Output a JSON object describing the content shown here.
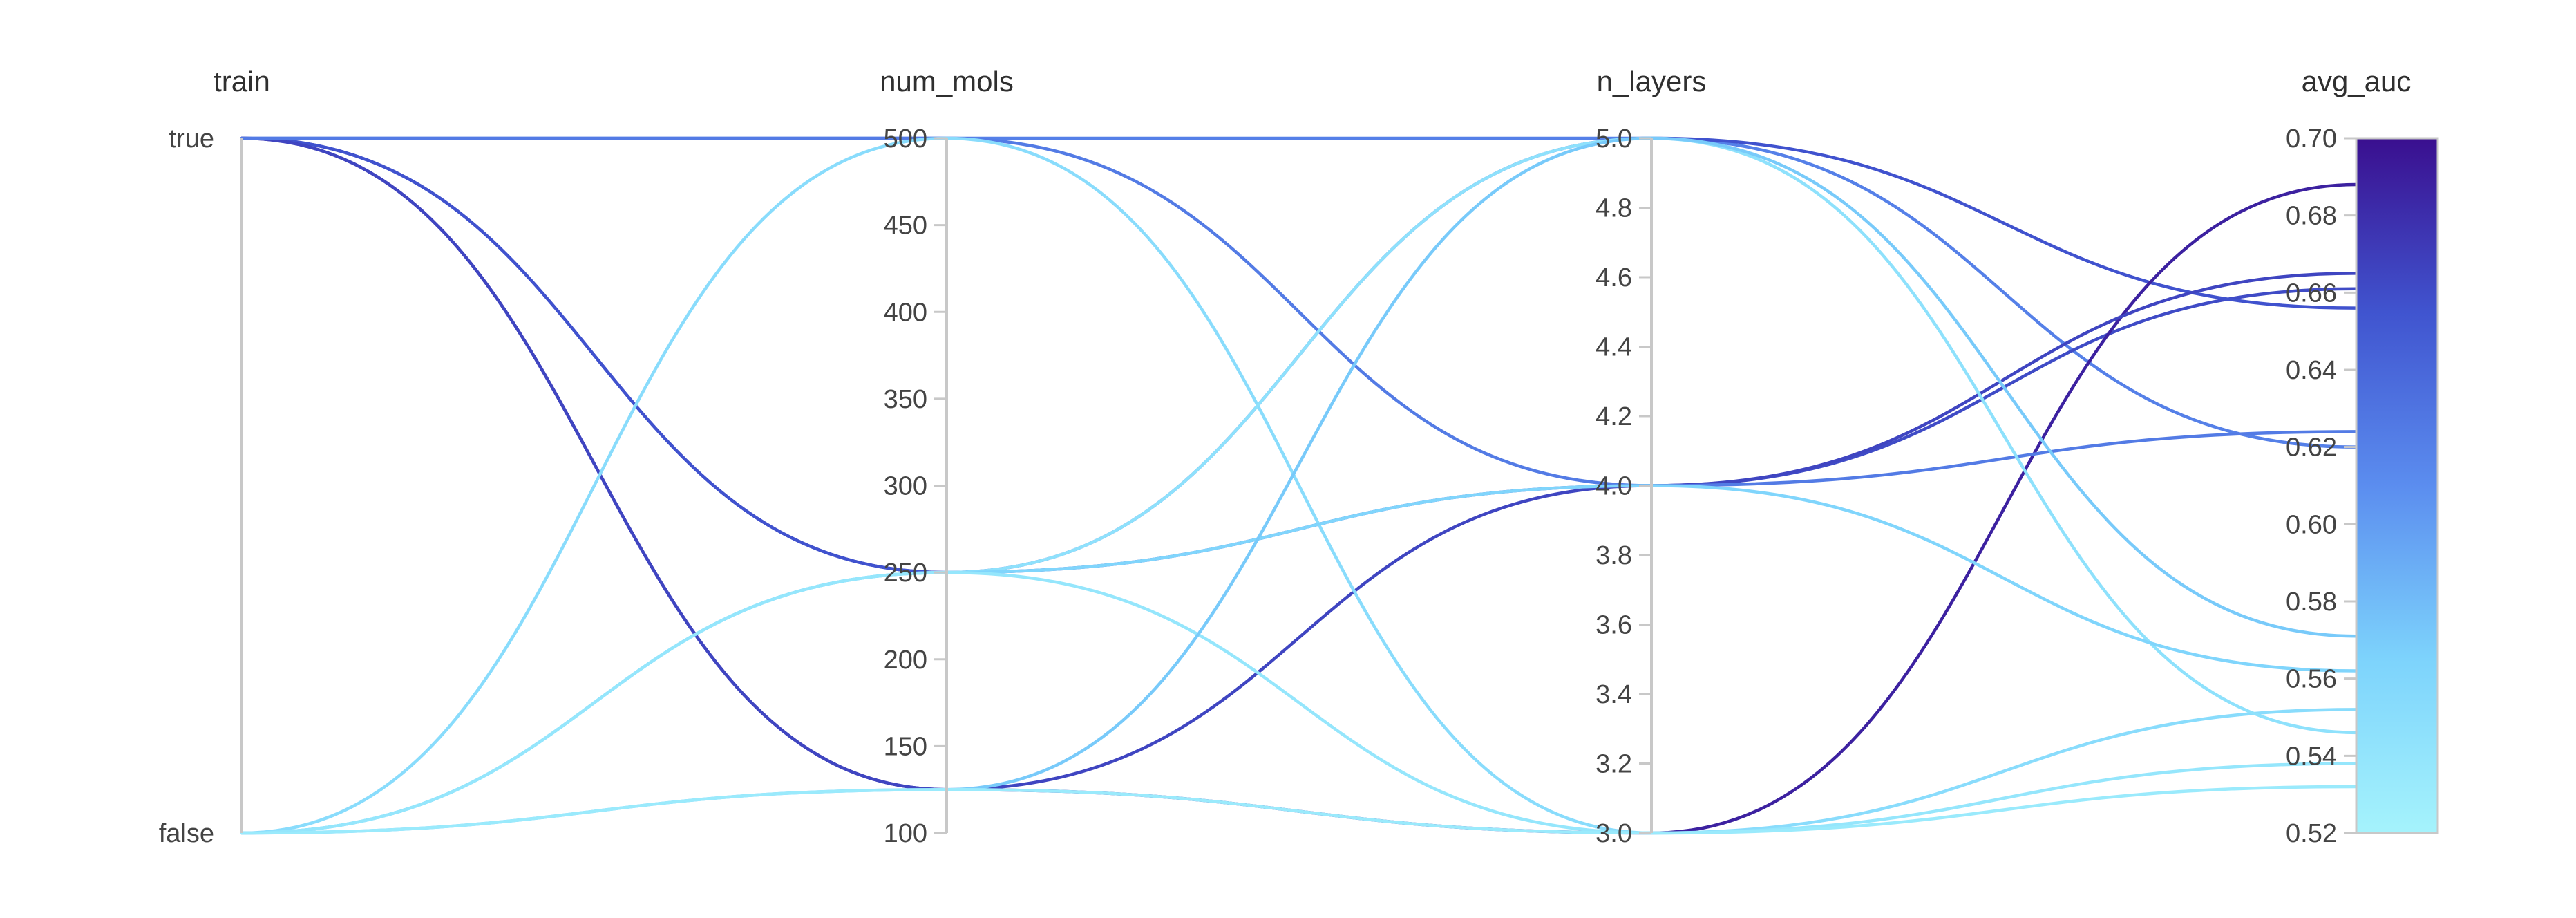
{
  "chart_data": {
    "type": "parallel_coordinates",
    "axes": [
      {
        "name": "train",
        "kind": "categorical",
        "categories": [
          "false",
          "true"
        ],
        "tick_labels": [
          "true",
          "false"
        ]
      },
      {
        "name": "num_mols",
        "kind": "numeric",
        "range": [
          100,
          500
        ],
        "ticks": [
          100,
          150,
          200,
          250,
          300,
          350,
          400,
          450,
          500
        ]
      },
      {
        "name": "n_layers",
        "kind": "numeric",
        "range": [
          3.0,
          5.0
        ],
        "ticks": [
          "3.0",
          "3.2",
          "3.4",
          "3.6",
          "3.8",
          "4.0",
          "4.2",
          "4.4",
          "4.6",
          "4.8",
          "5.0"
        ]
      },
      {
        "name": "avg_auc",
        "kind": "numeric",
        "range": [
          0.52,
          0.7
        ],
        "ticks": [
          "0.52",
          "0.54",
          "0.56",
          "0.58",
          "0.60",
          "0.62",
          "0.64",
          "0.66",
          "0.68",
          "0.70"
        ]
      }
    ],
    "color_scale": {
      "variable": "avg_auc",
      "range": [
        0.52,
        0.7
      ],
      "stops": [
        "#a5f3fc",
        "#7dd3fc",
        "#5b8def",
        "#4054cf",
        "#3a0f8f"
      ]
    },
    "lines": [
      {
        "train": "true",
        "num_mols": 500,
        "n_layers": 5.0,
        "avg_auc": 0.62
      },
      {
        "train": "true",
        "num_mols": 250,
        "n_layers": 4.0,
        "avg_auc": 0.661
      },
      {
        "train": "true",
        "num_mols": 250,
        "n_layers": 5.0,
        "avg_auc": 0.656
      },
      {
        "train": "true",
        "num_mols": 125,
        "n_layers": 3.0,
        "avg_auc": 0.688
      },
      {
        "train": "true",
        "num_mols": 125,
        "n_layers": 4.0,
        "avg_auc": 0.665
      },
      {
        "train": "true",
        "num_mols": 500,
        "n_layers": 4.0,
        "avg_auc": 0.624
      },
      {
        "train": "false",
        "num_mols": 500,
        "n_layers": 3.0,
        "avg_auc": 0.552
      },
      {
        "train": "false",
        "num_mols": 250,
        "n_layers": 5.0,
        "avg_auc": 0.546
      },
      {
        "train": "false",
        "num_mols": 250,
        "n_layers": 4.0,
        "avg_auc": 0.562
      },
      {
        "train": "false",
        "num_mols": 250,
        "n_layers": 3.0,
        "avg_auc": 0.538
      },
      {
        "train": "false",
        "num_mols": 125,
        "n_layers": 5.0,
        "avg_auc": 0.571
      },
      {
        "train": "false",
        "num_mols": 125,
        "n_layers": 3.0,
        "avg_auc": 0.532
      }
    ]
  }
}
